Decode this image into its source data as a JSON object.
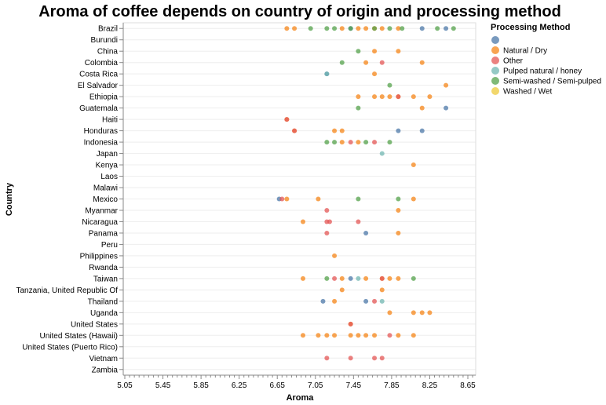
{
  "chart_data": {
    "type": "scatter",
    "title": "Aroma of coffee depends on country of origin and processing method",
    "xlabel": "Aroma",
    "ylabel": "Country",
    "xlim": [
      5.0,
      8.7
    ],
    "x_ticks": [
      "5.05",
      "5.45",
      "5.85",
      "6.25",
      "6.65",
      "7.05",
      "7.45",
      "7.85",
      "8.25",
      "8.65"
    ],
    "categories": [
      "Brazil",
      "Burundi",
      "China",
      "Colombia",
      "Costa Rica",
      "El Salvador",
      "Ethiopia",
      "Guatemala",
      "Haiti",
      "Honduras",
      "Indonesia",
      "Japan",
      "Kenya",
      "Laos",
      "Malawi",
      "Mexico",
      "Myanmar",
      "Nicaragua",
      "Panama",
      "Peru",
      "Philippines",
      "Rwanda",
      "Taiwan",
      "Tanzania, United Republic Of",
      "Thailand",
      "Uganda",
      "United States",
      "United States (Hawaii)",
      "United States (Puerto Rico)",
      "Vietnam",
      "Zambia"
    ],
    "grid": true,
    "legend": {
      "title": "Processing Method",
      "placement": "right",
      "entries": [
        {
          "label": "",
          "color": "#4c78a8"
        },
        {
          "label": "Natural / Dry",
          "color": "#f58518"
        },
        {
          "label": "Other",
          "color": "#e45756"
        },
        {
          "label": "Pulped natural / honey",
          "color": "#72b7b2"
        },
        {
          "label": "Semi-washed / Semi-pulped",
          "color": "#54a24b"
        },
        {
          "label": "Washed / Wet",
          "color": "#eeca3b"
        }
      ]
    },
    "series": [
      {
        "name": "",
        "color": "#4c78a8",
        "points": [
          [
            "Brazil",
            8.17
          ],
          [
            "Brazil",
            8.42
          ],
          [
            "Brazil",
            7.42
          ],
          [
            "Costa Rica",
            7.17
          ],
          [
            "Guatemala",
            8.42
          ],
          [
            "Honduras",
            7.92
          ],
          [
            "Honduras",
            8.17
          ],
          [
            "Mexico",
            6.67
          ],
          [
            "Panama",
            7.58
          ],
          [
            "Taiwan",
            7.42
          ],
          [
            "Thailand",
            7.13
          ],
          [
            "Thailand",
            7.58
          ]
        ]
      },
      {
        "name": "Natural / Dry",
        "color": "#f58518",
        "points": [
          [
            "Brazil",
            6.75
          ],
          [
            "Brazil",
            6.83
          ],
          [
            "Brazil",
            7.33
          ],
          [
            "Brazil",
            7.5
          ],
          [
            "Brazil",
            7.58
          ],
          [
            "Brazil",
            7.67
          ],
          [
            "Brazil",
            7.75
          ],
          [
            "Brazil",
            7.92
          ],
          [
            "China",
            7.67
          ],
          [
            "China",
            7.92
          ],
          [
            "Colombia",
            7.58
          ],
          [
            "Colombia",
            8.17
          ],
          [
            "Costa Rica",
            7.67
          ],
          [
            "El Salvador",
            8.42
          ],
          [
            "Ethiopia",
            7.5
          ],
          [
            "Ethiopia",
            7.67
          ],
          [
            "Ethiopia",
            7.75
          ],
          [
            "Ethiopia",
            7.83
          ],
          [
            "Ethiopia",
            7.92
          ],
          [
            "Ethiopia",
            8.08
          ],
          [
            "Ethiopia",
            8.25
          ],
          [
            "Guatemala",
            8.17
          ],
          [
            "Haiti",
            6.75
          ],
          [
            "Honduras",
            6.83
          ],
          [
            "Honduras",
            7.25
          ],
          [
            "Honduras",
            7.33
          ],
          [
            "Indonesia",
            7.33
          ],
          [
            "Indonesia",
            7.5
          ],
          [
            "Kenya",
            8.08
          ],
          [
            "Mexico",
            6.75
          ],
          [
            "Mexico",
            7.08
          ],
          [
            "Mexico",
            8.08
          ],
          [
            "Myanmar",
            7.92
          ],
          [
            "Nicaragua",
            6.92
          ],
          [
            "Panama",
            7.92
          ],
          [
            "Philippines",
            7.25
          ],
          [
            "Taiwan",
            6.92
          ],
          [
            "Taiwan",
            7.33
          ],
          [
            "Taiwan",
            7.58
          ],
          [
            "Taiwan",
            7.75
          ],
          [
            "Taiwan",
            7.83
          ],
          [
            "Taiwan",
            7.92
          ],
          [
            "Tanzania, United Republic Of",
            7.33
          ],
          [
            "Tanzania, United Republic Of",
            7.75
          ],
          [
            "Thailand",
            7.25
          ],
          [
            "Uganda",
            7.83
          ],
          [
            "Uganda",
            8.08
          ],
          [
            "Uganda",
            8.17
          ],
          [
            "Uganda",
            8.25
          ],
          [
            "United States",
            7.42
          ],
          [
            "United States (Hawaii)",
            6.92
          ],
          [
            "United States (Hawaii)",
            7.08
          ],
          [
            "United States (Hawaii)",
            7.17
          ],
          [
            "United States (Hawaii)",
            7.25
          ],
          [
            "United States (Hawaii)",
            7.42
          ],
          [
            "United States (Hawaii)",
            7.5
          ],
          [
            "United States (Hawaii)",
            7.58
          ],
          [
            "United States (Hawaii)",
            7.67
          ],
          [
            "United States (Hawaii)",
            7.92
          ],
          [
            "United States (Hawaii)",
            8.08
          ]
        ]
      },
      {
        "name": "Other",
        "color": "#e45756",
        "points": [
          [
            "Colombia",
            7.75
          ],
          [
            "Ethiopia",
            7.92
          ],
          [
            "Haiti",
            6.75
          ],
          [
            "Honduras",
            6.83
          ],
          [
            "Indonesia",
            7.42
          ],
          [
            "Indonesia",
            7.67
          ],
          [
            "Mexico",
            6.7
          ],
          [
            "Myanmar",
            7.17
          ],
          [
            "Nicaragua",
            7.17
          ],
          [
            "Nicaragua",
            7.2
          ],
          [
            "Nicaragua",
            7.5
          ],
          [
            "Panama",
            7.17
          ],
          [
            "Taiwan",
            7.25
          ],
          [
            "Taiwan",
            7.75
          ],
          [
            "Thailand",
            7.67
          ],
          [
            "United States",
            7.42
          ],
          [
            "United States (Hawaii)",
            7.83
          ],
          [
            "Vietnam",
            7.17
          ],
          [
            "Vietnam",
            7.42
          ],
          [
            "Vietnam",
            7.67
          ],
          [
            "Vietnam",
            7.75
          ]
        ]
      },
      {
        "name": "Pulped natural / honey",
        "color": "#72b7b2",
        "points": [
          [
            "Costa Rica",
            7.17
          ],
          [
            "Japan",
            7.75
          ],
          [
            "Thailand",
            7.75
          ],
          [
            "Taiwan",
            7.5
          ]
        ]
      },
      {
        "name": "Semi-washed / Semi-pulped",
        "color": "#54a24b",
        "points": [
          [
            "Brazil",
            7.0
          ],
          [
            "Brazil",
            7.17
          ],
          [
            "Brazil",
            7.25
          ],
          [
            "Brazil",
            7.42
          ],
          [
            "Brazil",
            7.67
          ],
          [
            "Brazil",
            7.83
          ],
          [
            "Brazil",
            7.96
          ],
          [
            "Brazil",
            8.33
          ],
          [
            "Brazil",
            8.5
          ],
          [
            "China",
            7.5
          ],
          [
            "Colombia",
            7.33
          ],
          [
            "El Salvador",
            7.83
          ],
          [
            "Guatemala",
            7.5
          ],
          [
            "Indonesia",
            7.17
          ],
          [
            "Indonesia",
            7.25
          ],
          [
            "Indonesia",
            7.58
          ],
          [
            "Indonesia",
            7.83
          ],
          [
            "Mexico",
            7.5
          ],
          [
            "Mexico",
            7.92
          ],
          [
            "Taiwan",
            7.17
          ],
          [
            "Taiwan",
            8.08
          ]
        ]
      }
    ]
  }
}
